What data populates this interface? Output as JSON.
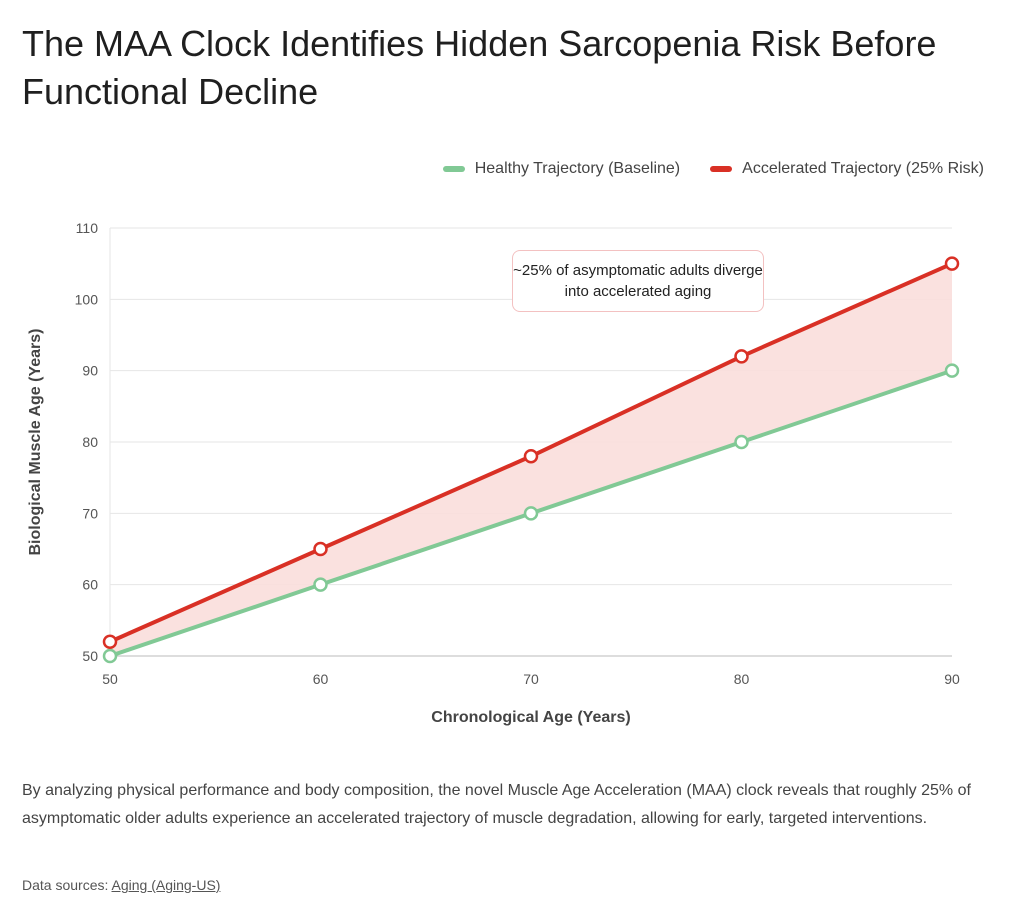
{
  "title": "The MAA Clock Identifies Hidden Sarcopenia Risk Before Functional Decline",
  "description": "By analyzing physical performance and body composition, the novel Muscle Age Acceleration (MAA) clock reveals that roughly 25% of asymptomatic older adults experience an accelerated trajectory of muscle degradation, allowing for early, targeted interventions.",
  "sources": {
    "label": "Data sources:",
    "link": "Aging (Aging-US)"
  },
  "chart_data": {
    "type": "line",
    "title": "",
    "xlabel": "Chronological Age (Years)",
    "ylabel": "Biological Muscle Age (Years)",
    "x": [
      50,
      60,
      70,
      80,
      90
    ],
    "xlim": [
      50,
      90
    ],
    "ylim": [
      50,
      110
    ],
    "xticks": [
      "50",
      "60",
      "70",
      "80",
      "90"
    ],
    "yticks": [
      "50",
      "60",
      "70",
      "80",
      "90",
      "100",
      "110"
    ],
    "grid": true,
    "legend_position": "top-right",
    "series": [
      {
        "name": "Healthy Trajectory (Baseline)",
        "values": [
          50,
          60,
          70,
          80,
          90
        ],
        "color": "#81c995"
      },
      {
        "name": "Accelerated Trajectory (25% Risk)",
        "values": [
          52,
          65,
          78,
          92,
          105
        ],
        "color": "#d93025"
      }
    ],
    "fill_between_color": "#f9dedc",
    "annotation": "~25% of asymptomatic adults diverge into accelerated aging"
  }
}
